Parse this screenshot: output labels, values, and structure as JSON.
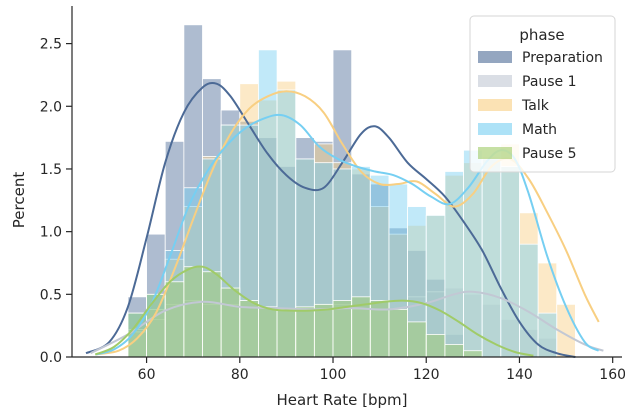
{
  "chart_data": {
    "type": "histogram",
    "xlabel": "Heart Rate [bpm]",
    "ylabel": "Percent",
    "xlim": [
      44,
      162
    ],
    "ylim": [
      0,
      2.8
    ],
    "xticks": [
      60,
      80,
      100,
      120,
      140,
      160
    ],
    "yticks": [
      0.0,
      0.5,
      1.0,
      1.5,
      2.0,
      2.5
    ],
    "ytick_labels": [
      "0.0",
      "0.5",
      "1.0",
      "1.5",
      "2.0",
      "2.5"
    ],
    "bin_start": 56,
    "bin_width": 4,
    "grid": false,
    "legend": {
      "title": "phase",
      "placement": "top-right"
    },
    "series": [
      {
        "name": "Preparation",
        "color": "#4c6a96",
        "values": [
          0.48,
          0.98,
          1.72,
          2.65,
          2.22,
          1.97,
          1.88,
          1.75,
          1.52,
          1.75,
          1.72,
          2.45,
          1.46,
          1.38,
          1.03,
          0.85,
          0.62,
          0.18,
          0.0,
          0.0,
          0.0,
          0.0,
          0.0,
          0.0,
          0.0
        ],
        "kde_x": [
          47,
          52,
          56,
          60,
          64,
          68,
          72,
          75,
          78,
          82,
          86,
          90,
          94,
          98,
          102,
          106,
          109,
          112,
          116,
          120,
          124,
          128,
          132,
          136,
          140,
          144,
          148,
          152
        ],
        "kde_y": [
          0.03,
          0.12,
          0.4,
          0.95,
          1.55,
          1.95,
          2.15,
          2.18,
          2.08,
          1.85,
          1.62,
          1.45,
          1.35,
          1.35,
          1.55,
          1.78,
          1.84,
          1.75,
          1.55,
          1.42,
          1.28,
          1.08,
          0.85,
          0.55,
          0.28,
          0.1,
          0.03,
          0.0
        ]
      },
      {
        "name": "Pause 1",
        "color": "#c2c8d4",
        "values": [
          0.22,
          0.3,
          0.42,
          0.45,
          0.42,
          0.42,
          0.45,
          0.4,
          0.38,
          0.4,
          0.42,
          0.42,
          0.38,
          0.38,
          0.45,
          0.48,
          0.52,
          0.55,
          0.5,
          0.42,
          0.3,
          0.22,
          0.15,
          0.0,
          0.0
        ],
        "kde_x": [
          48,
          56,
          64,
          72,
          80,
          88,
          96,
          104,
          112,
          120,
          126,
          130,
          136,
          142,
          148,
          154,
          158
        ],
        "kde_y": [
          0.03,
          0.18,
          0.37,
          0.44,
          0.4,
          0.39,
          0.38,
          0.39,
          0.38,
          0.43,
          0.5,
          0.52,
          0.47,
          0.36,
          0.22,
          0.1,
          0.05
        ]
      },
      {
        "name": "Talk",
        "color": "#f8cf82",
        "values": [
          0.2,
          0.38,
          0.78,
          1.2,
          1.6,
          1.85,
          2.18,
          2.05,
          2.2,
          1.58,
          1.7,
          1.55,
          1.5,
          1.2,
          0.98,
          1.05,
          1.13,
          1.45,
          1.55,
          1.6,
          1.7,
          1.15,
          0.75,
          0.42,
          0.0
        ],
        "kde_x": [
          49,
          54,
          58,
          62,
          66,
          70,
          74,
          78,
          82,
          86,
          90,
          94,
          98,
          102,
          106,
          110,
          114,
          118,
          122,
          126,
          130,
          134,
          138,
          142,
          146,
          150,
          154,
          157
        ],
        "kde_y": [
          0.02,
          0.05,
          0.15,
          0.35,
          0.7,
          1.1,
          1.48,
          1.78,
          1.98,
          2.08,
          2.12,
          2.08,
          1.95,
          1.7,
          1.48,
          1.38,
          1.38,
          1.4,
          1.3,
          1.2,
          1.3,
          1.52,
          1.58,
          1.42,
          1.15,
          0.85,
          0.5,
          0.28
        ]
      },
      {
        "name": "Math",
        "color": "#76cff2",
        "values": [
          0.35,
          0.5,
          0.85,
          1.35,
          1.58,
          1.85,
          1.85,
          2.45,
          2.13,
          1.58,
          1.55,
          1.5,
          1.52,
          1.45,
          1.38,
          1.2,
          1.13,
          1.48,
          1.65,
          1.58,
          1.52,
          0.9,
          0.35,
          0.0,
          0.0
        ],
        "kde_x": [
          49,
          53,
          57,
          61,
          65,
          69,
          73,
          77,
          81,
          85,
          89,
          93,
          97,
          101,
          105,
          109,
          113,
          117,
          121,
          125,
          129,
          133,
          136,
          139,
          142,
          146,
          150,
          154,
          157
        ],
        "kde_y": [
          0.02,
          0.06,
          0.18,
          0.42,
          0.8,
          1.2,
          1.48,
          1.68,
          1.82,
          1.9,
          1.93,
          1.85,
          1.68,
          1.58,
          1.52,
          1.48,
          1.45,
          1.38,
          1.28,
          1.22,
          1.35,
          1.56,
          1.65,
          1.58,
          1.3,
          0.8,
          0.4,
          0.12,
          0.05
        ]
      },
      {
        "name": "Pause 5",
        "color": "#a0cb68",
        "values": [
          0.35,
          0.5,
          0.6,
          0.72,
          0.68,
          0.55,
          0.45,
          0.4,
          0.38,
          0.4,
          0.42,
          0.45,
          0.48,
          0.45,
          0.38,
          0.28,
          0.18,
          0.1,
          0.05,
          0.0,
          0.0,
          0.0,
          0.0,
          0.0,
          0.0
        ],
        "kde_x": [
          49,
          53,
          57,
          61,
          65,
          69,
          72,
          75,
          79,
          83,
          87,
          91,
          95,
          99,
          103,
          107,
          111,
          115,
          119,
          123,
          127,
          131,
          135,
          139,
          143
        ],
        "kde_y": [
          0.02,
          0.08,
          0.22,
          0.42,
          0.6,
          0.7,
          0.72,
          0.66,
          0.53,
          0.43,
          0.38,
          0.37,
          0.37,
          0.38,
          0.4,
          0.42,
          0.44,
          0.45,
          0.43,
          0.37,
          0.28,
          0.18,
          0.1,
          0.04,
          0.01
        ]
      }
    ]
  }
}
